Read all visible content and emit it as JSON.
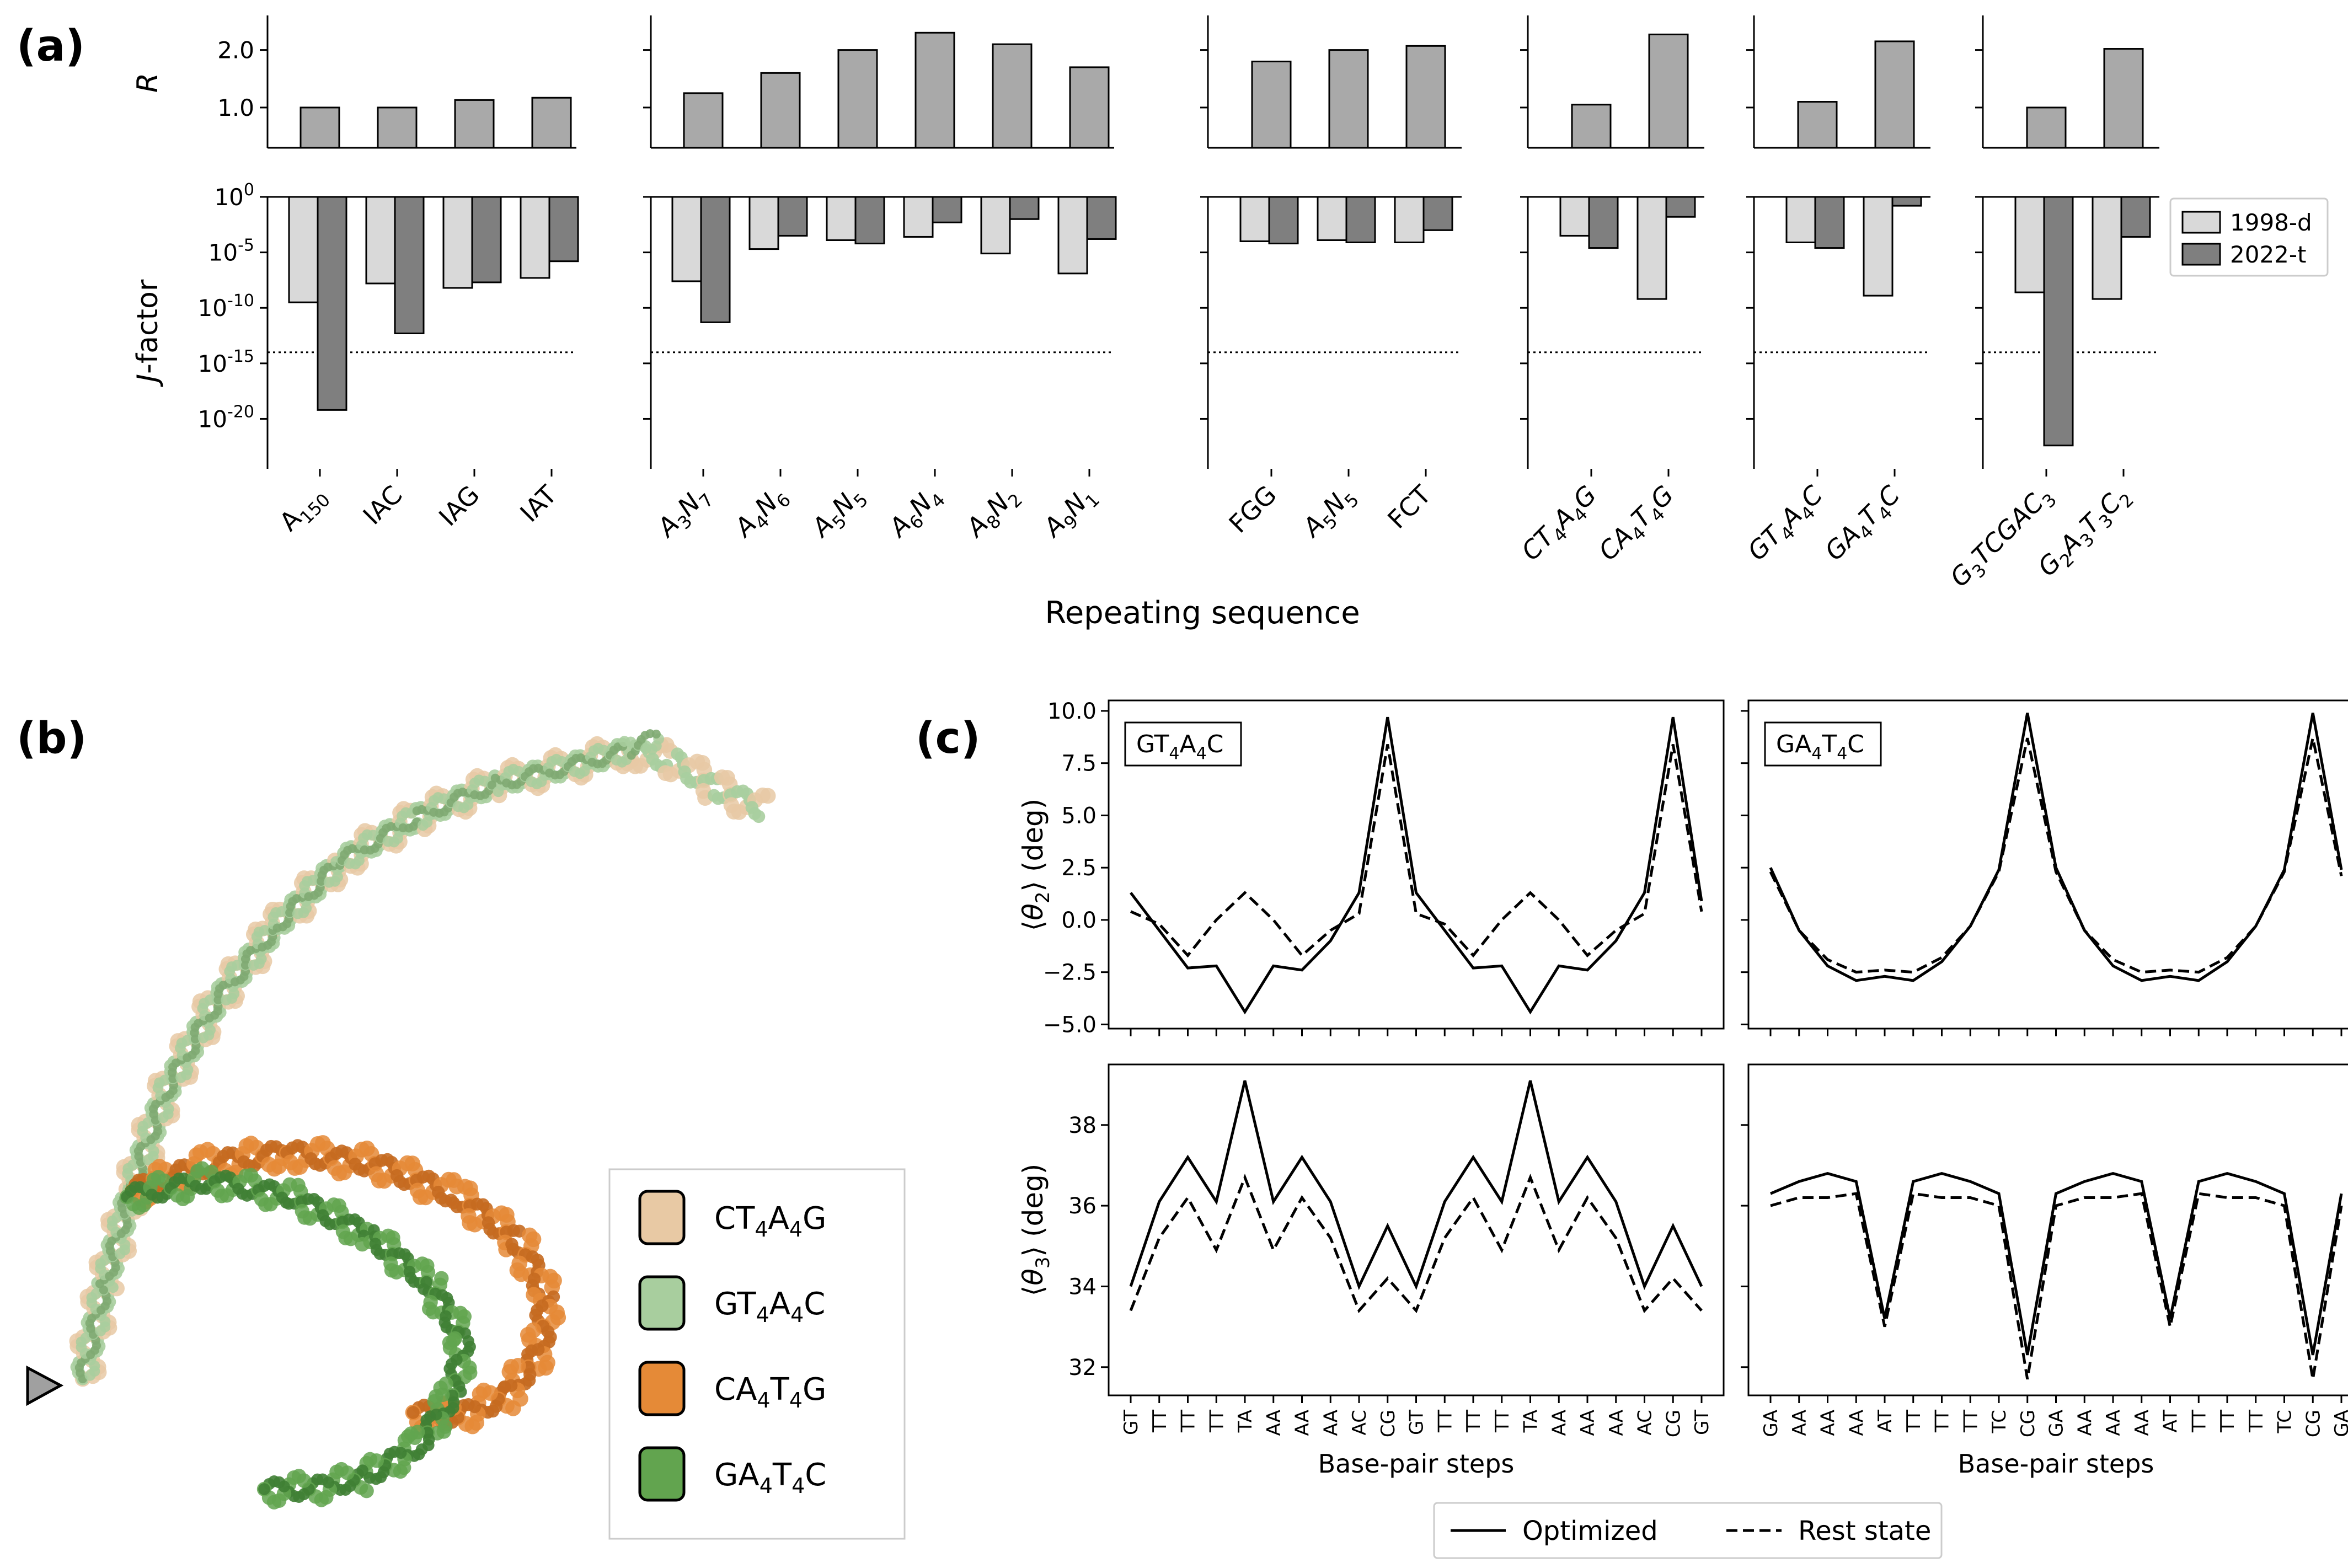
{
  "panel_labels": {
    "a": "(a)",
    "b": "(b)",
    "c": "(c)"
  },
  "colors": {
    "r_bar": "#a9a9a9",
    "d1998": "#d9d9d9",
    "t2022": "#7f7f7f",
    "line": "#000000",
    "CT4A4G": "#e8c9a4",
    "GT4A4C": "#a8ce9e",
    "CA4T4G": "#e58a37",
    "GA4T4C": "#62a44f"
  },
  "chart_data": [
    {
      "id": "panel-a",
      "type": "bar",
      "title": "",
      "xlabel": "Repeating sequence",
      "ylabel_top": "R",
      "ylabel_bottom": "J-factor",
      "r_ylim": [
        0.3,
        2.6
      ],
      "r_ticks": [
        "1.0",
        "2.0"
      ],
      "j_ylim_log10": [
        -24.5,
        0
      ],
      "j_ticks": [
        {
          "exp": 0,
          "label": "10^0"
        },
        {
          "exp": -5,
          "label": "10^-5"
        },
        {
          "exp": -10,
          "label": "10^-10"
        },
        {
          "exp": -15,
          "label": "10^-15"
        },
        {
          "exp": -20,
          "label": "10^-20"
        }
      ],
      "threshold_log10": -14,
      "legend": [
        "1998-d",
        "2022-t"
      ],
      "groups": [
        {
          "categories": [
            "A150",
            "IAC",
            "IAG",
            "IAT"
          ],
          "labels": [
            [
              "A",
              "150"
            ],
            [
              "IAC"
            ],
            [
              "IAG"
            ],
            [
              "IAT"
            ]
          ],
          "R": [
            1.0,
            1.0,
            1.13,
            1.17
          ],
          "j_1998d": [
            -9.5,
            -7.8,
            -8.2,
            -7.3
          ],
          "j_2022t": [
            -19.2,
            -12.3,
            -7.7,
            -5.8
          ]
        },
        {
          "categories": [
            "A3N7",
            "A4N6",
            "A5N5",
            "A6N4",
            "A8N2",
            "A9N1"
          ],
          "labels": [
            [
              "A",
              "3",
              "N",
              "7"
            ],
            [
              "A",
              "4",
              "N",
              "6"
            ],
            [
              "A",
              "5",
              "N",
              "5"
            ],
            [
              "A",
              "6",
              "N",
              "4"
            ],
            [
              "A",
              "8",
              "N",
              "2"
            ],
            [
              "A",
              "9",
              "N",
              "1"
            ]
          ],
          "R": [
            1.25,
            1.6,
            2.0,
            2.3,
            2.1,
            1.7
          ],
          "j_1998d": [
            -7.6,
            -4.7,
            -3.9,
            -3.6,
            -5.1,
            -6.9
          ],
          "j_2022t": [
            -11.3,
            -3.5,
            -4.2,
            -2.3,
            -2.0,
            -3.8
          ]
        },
        {
          "categories": [
            "FGG",
            "A5N5",
            "FCT"
          ],
          "labels": [
            [
              "FGG"
            ],
            [
              "A",
              "5",
              "N",
              "5"
            ],
            [
              "FCT"
            ]
          ],
          "R": [
            1.8,
            2.0,
            2.07
          ],
          "j_1998d": [
            -4.0,
            -3.9,
            -4.1
          ],
          "j_2022t": [
            -4.2,
            -4.1,
            -3.0
          ]
        },
        {
          "categories": [
            "CT4A4G",
            "CA4T4G"
          ],
          "labels": [
            [
              "CT",
              "4",
              "A",
              "4",
              "G"
            ],
            [
              "CA",
              "4",
              "T",
              "4",
              "G"
            ]
          ],
          "R": [
            1.05,
            2.27
          ],
          "j_1998d": [
            -3.5,
            -9.2
          ],
          "j_2022t": [
            -4.6,
            -1.8
          ]
        },
        {
          "categories": [
            "GT4A4C",
            "GA4T4C"
          ],
          "labels": [
            [
              "GT",
              "4",
              "A",
              "4",
              "C"
            ],
            [
              "GA",
              "4",
              "T",
              "4",
              "C"
            ]
          ],
          "R": [
            1.1,
            2.15
          ],
          "j_1998d": [
            -4.1,
            -8.9
          ],
          "j_2022t": [
            -4.6,
            -0.8
          ]
        },
        {
          "categories": [
            "G3TCGAC3",
            "G2A3T3C2"
          ],
          "labels": [
            [
              "G",
              "3",
              "TCGAC",
              "3"
            ],
            [
              "G",
              "2",
              "A",
              "3",
              "T",
              "3",
              "C",
              "2"
            ]
          ],
          "R": [
            1.0,
            2.02
          ],
          "j_1998d": [
            -8.6,
            -9.2
          ],
          "j_2022t": [
            -22.4,
            -3.6
          ]
        }
      ]
    },
    {
      "id": "panel-c-theta2",
      "type": "line",
      "ylabel": "⟨θ2⟩ (deg)",
      "ylim": [
        -5.2,
        10.5
      ],
      "yticks": [
        "10.0",
        "7.5",
        "5.0",
        "2.5",
        "0.0",
        "−2.5",
        "−5.0"
      ],
      "ytick_values": [
        10,
        7.5,
        5,
        2.5,
        0,
        -2.5,
        -5
      ],
      "subplots": [
        {
          "title": "GT4A4C",
          "optimized": [
            1.3,
            -0.5,
            -2.3,
            -2.2,
            -4.4,
            -2.2,
            -2.4,
            -1.0,
            1.3,
            9.7,
            1.3,
            -0.5,
            -2.3,
            -2.2,
            -4.4,
            -2.2,
            -2.4,
            -1.0,
            1.3,
            9.7,
            0.9
          ],
          "rest": [
            0.4,
            -0.2,
            -1.7,
            0.0,
            1.3,
            0.0,
            -1.7,
            -0.5,
            0.3,
            8.4,
            0.3,
            -0.2,
            -1.7,
            0.0,
            1.3,
            0.0,
            -1.7,
            -0.5,
            0.3,
            8.4,
            0.4
          ]
        },
        {
          "title": "GA4T4C",
          "optimized": [
            2.5,
            -0.5,
            -2.2,
            -2.9,
            -2.7,
            -2.9,
            -2.0,
            -0.3,
            2.4,
            9.9,
            2.5,
            -0.5,
            -2.2,
            -2.9,
            -2.7,
            -2.9,
            -2.0,
            -0.3,
            2.4,
            9.9,
            2.4
          ],
          "rest": [
            2.3,
            -0.5,
            -1.9,
            -2.5,
            -2.4,
            -2.5,
            -1.8,
            -0.3,
            2.3,
            8.7,
            2.3,
            -0.5,
            -1.9,
            -2.5,
            -2.4,
            -2.5,
            -1.8,
            -0.3,
            2.3,
            8.7,
            2.1
          ]
        }
      ]
    },
    {
      "id": "panel-c-theta3",
      "type": "line",
      "ylabel": "⟨θ3⟩ (deg)",
      "ylim": [
        31.3,
        39.5
      ],
      "yticks": [
        "38",
        "36",
        "34",
        "32"
      ],
      "ytick_values": [
        38,
        36,
        34,
        32
      ],
      "xlabel": "Base-pair steps",
      "subplots": [
        {
          "xticks": [
            "GT",
            "TT",
            "TT",
            "TT",
            "TA",
            "AA",
            "AA",
            "AA",
            "AC",
            "CG",
            "GT",
            "TT",
            "TT",
            "TT",
            "TA",
            "AA",
            "AA",
            "AA",
            "AC",
            "CG",
            "GT"
          ],
          "optimized": [
            34.0,
            36.1,
            37.2,
            36.1,
            39.1,
            36.1,
            37.2,
            36.1,
            34.0,
            35.5,
            34.0,
            36.1,
            37.2,
            36.1,
            39.1,
            36.1,
            37.2,
            36.1,
            34.0,
            35.5,
            34.0
          ],
          "rest": [
            33.4,
            35.2,
            36.2,
            34.9,
            36.7,
            34.9,
            36.2,
            35.2,
            33.4,
            34.2,
            33.4,
            35.2,
            36.2,
            34.9,
            36.7,
            34.9,
            36.2,
            35.2,
            33.4,
            34.2,
            33.4
          ]
        },
        {
          "xticks": [
            "GA",
            "AA",
            "AA",
            "AA",
            "AT",
            "TT",
            "TT",
            "TT",
            "TC",
            "CG",
            "GA",
            "AA",
            "AA",
            "AA",
            "AT",
            "TT",
            "TT",
            "TT",
            "TC",
            "CG",
            "GA"
          ],
          "optimized": [
            36.3,
            36.6,
            36.8,
            36.6,
            33.2,
            36.6,
            36.8,
            36.6,
            36.3,
            32.3,
            36.3,
            36.6,
            36.8,
            36.6,
            33.2,
            36.6,
            36.8,
            36.6,
            36.3,
            32.3,
            36.3
          ],
          "rest": [
            36.0,
            36.2,
            36.2,
            36.3,
            33.0,
            36.3,
            36.2,
            36.2,
            36.0,
            31.7,
            36.0,
            36.2,
            36.2,
            36.3,
            33.0,
            36.3,
            36.2,
            36.2,
            36.0,
            31.7,
            36.0
          ]
        }
      ],
      "legend": [
        "Optimized",
        "Rest state"
      ]
    }
  ],
  "panel_b": {
    "legend": [
      {
        "key": "CT4A4G",
        "parts": [
          [
            "CT",
            ""
          ],
          [
            "4",
            "sub"
          ],
          [
            "A",
            ""
          ],
          [
            "4",
            "sub"
          ],
          [
            "G",
            ""
          ]
        ]
      },
      {
        "key": "GT4A4C",
        "parts": [
          [
            "GT",
            ""
          ],
          [
            "4",
            "sub"
          ],
          [
            "A",
            ""
          ],
          [
            "4",
            "sub"
          ],
          [
            "C",
            ""
          ]
        ]
      },
      {
        "key": "CA4T4G",
        "parts": [
          [
            "CA",
            ""
          ],
          [
            "4",
            "sub"
          ],
          [
            "T",
            ""
          ],
          [
            "4",
            "sub"
          ],
          [
            "G",
            ""
          ]
        ]
      },
      {
        "key": "GA4T4C",
        "parts": [
          [
            "GA",
            ""
          ],
          [
            "4",
            "sub"
          ],
          [
            "T",
            ""
          ],
          [
            "4",
            "sub"
          ],
          [
            "C",
            ""
          ]
        ]
      }
    ]
  }
}
